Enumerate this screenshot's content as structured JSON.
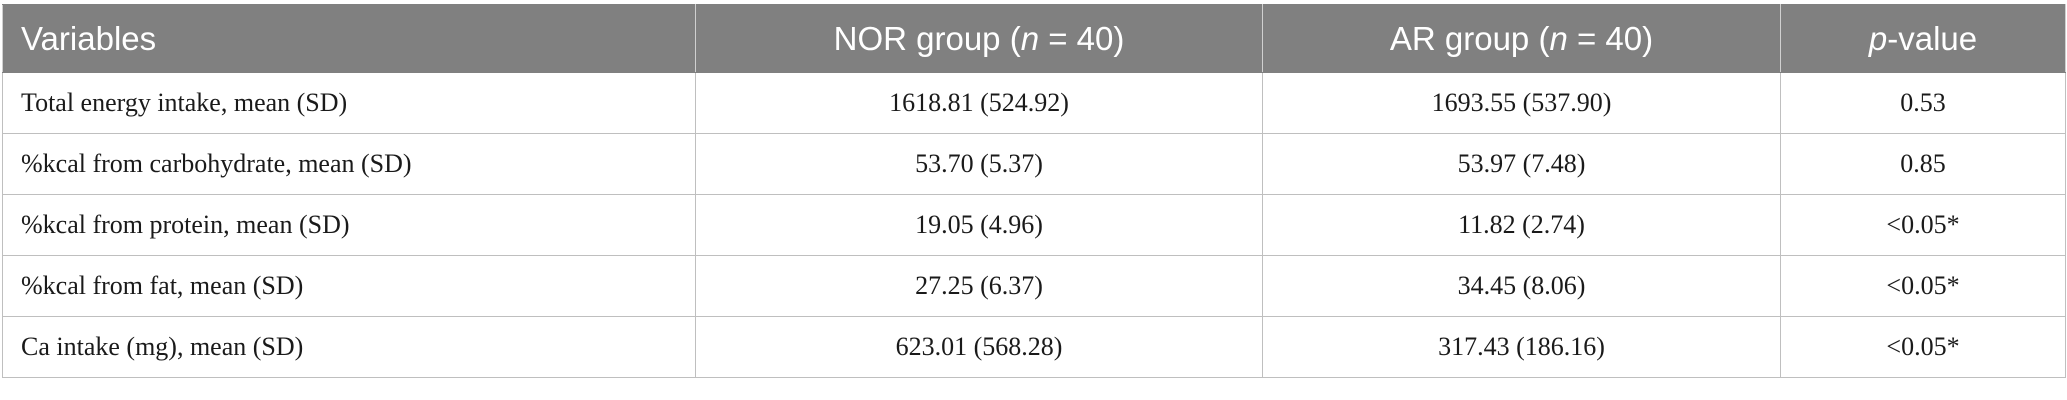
{
  "table": {
    "headers": {
      "variables": "Variables",
      "nor_prefix": "NOR group (",
      "nor_n": "n",
      "nor_suffix": " = 40)",
      "ar_prefix": "AR group (",
      "ar_n": "n",
      "ar_suffix": " = 40)",
      "p_italic": "p",
      "p_suffix": "-value"
    },
    "rows": [
      {
        "variable": "Total energy intake, mean (SD)",
        "nor": "1618.81 (524.92)",
        "ar": "1693.55 (537.90)",
        "p": "0.53"
      },
      {
        "variable": "%kcal from carbohydrate, mean (SD)",
        "nor": "53.70 (5.37)",
        "ar": "53.97 (7.48)",
        "p": "0.85"
      },
      {
        "variable": "%kcal from protein, mean (SD)",
        "nor": "19.05 (4.96)",
        "ar": "11.82 (2.74)",
        "p": "<0.05*"
      },
      {
        "variable": "%kcal from fat, mean (SD)",
        "nor": "27.25 (6.37)",
        "ar": "34.45 (8.06)",
        "p": "<0.05*"
      },
      {
        "variable": "Ca intake (mg), mean (SD)",
        "nor": "623.01 (568.28)",
        "ar": "317.43 (186.16)",
        "p": "<0.05*"
      }
    ]
  }
}
